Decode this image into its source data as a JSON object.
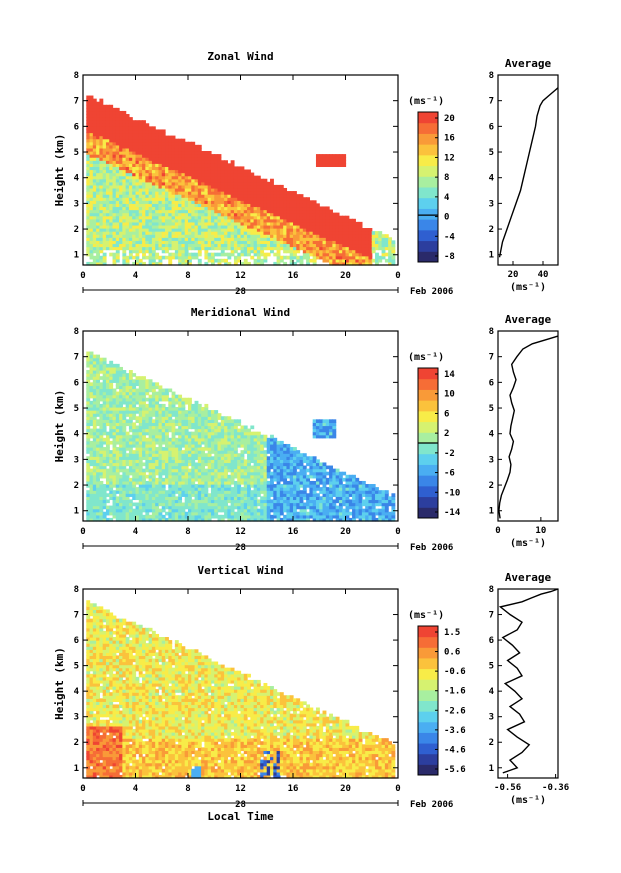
{
  "figure": {
    "x_axis_label": "Local Time",
    "date_day": "28",
    "date_month_year": "Feb 2006",
    "x_ticks": [
      "0",
      "4",
      "8",
      "12",
      "16",
      "20",
      "0"
    ],
    "y_ticks": [
      "1",
      "2",
      "3",
      "4",
      "5",
      "6",
      "7",
      "8"
    ],
    "y_label": "Height (km)",
    "avg_title": "Average",
    "colorbar_unit": "(ms⁻¹)",
    "avg_unit": "(ms⁻¹)",
    "colormap": [
      "#2a2a6a",
      "#2c3e9e",
      "#2f5fd0",
      "#3a86e8",
      "#4aaef2",
      "#5dd0ee",
      "#80e6cc",
      "#a8efa0",
      "#d6f270",
      "#f8ec48",
      "#fbc23c",
      "#f99a38",
      "#f66d36",
      "#ef4433"
    ]
  },
  "chart_data": [
    {
      "type": "heatmap",
      "title": "Zonal Wind",
      "xlabel": "",
      "ylabel": "Height (km)",
      "xlim": [
        0,
        24
      ],
      "ylim": [
        0.6,
        8
      ],
      "colorbar": {
        "unit": "(ms⁻¹)",
        "ticks": [
          "20",
          "16",
          "12",
          "8",
          "4",
          "0",
          "-4",
          "-8"
        ],
        "range": [
          -10,
          22
        ],
        "zero_line": 0
      },
      "profile": {
        "title": "Average",
        "xlim": [
          10,
          50
        ],
        "xticks": [
          "20",
          "40"
        ],
        "xlabel": "(ms⁻¹)",
        "x": [
          11,
          13,
          16,
          19,
          22,
          25,
          27,
          29,
          31,
          33,
          35,
          36,
          38,
          40,
          44,
          48,
          50
        ],
        "y": [
          0.9,
          1.5,
          2.0,
          2.5,
          3.0,
          3.5,
          4.0,
          4.5,
          5.0,
          5.5,
          6.0,
          6.4,
          6.8,
          7.0,
          7.2,
          7.4,
          7.5
        ]
      }
    },
    {
      "type": "heatmap",
      "title": "Meridional Wind",
      "xlabel": "",
      "ylabel": "Height (km)",
      "xlim": [
        0,
        24
      ],
      "ylim": [
        0.6,
        8
      ],
      "colorbar": {
        "unit": "(ms⁻¹)",
        "ticks": [
          "14",
          "10",
          "6",
          "2",
          "-2",
          "-6",
          "-10",
          "-14"
        ],
        "range": [
          -16,
          16
        ],
        "zero_line": 0
      },
      "profile": {
        "title": "Average",
        "xlim": [
          0,
          14
        ],
        "xticks": [
          "0",
          "10"
        ],
        "xlabel": "(ms⁻¹)",
        "x": [
          0.5,
          0.2,
          0.4,
          0.8,
          1.5,
          2.2,
          2.8,
          3.0,
          2.6,
          3.2,
          3.6,
          2.8,
          3.0,
          3.4,
          3.8,
          3.2,
          2.8,
          3.6,
          4.2,
          3.6,
          3.2,
          4.4,
          5.8,
          8.0,
          12.0,
          14.0
        ],
        "y": [
          0.7,
          1.0,
          1.3,
          1.6,
          1.9,
          2.2,
          2.5,
          2.8,
          3.1,
          3.4,
          3.7,
          4.0,
          4.3,
          4.6,
          4.9,
          5.2,
          5.5,
          5.8,
          6.1,
          6.4,
          6.7,
          7.0,
          7.3,
          7.5,
          7.7,
          7.8
        ]
      }
    },
    {
      "type": "heatmap",
      "title": "Vertical Wind",
      "xlabel": "Local Time",
      "ylabel": "Height (km)",
      "xlim": [
        0,
        24
      ],
      "ylim": [
        0.6,
        8
      ],
      "colorbar": {
        "unit": "(ms⁻¹)",
        "ticks": [
          "1.5",
          "0.6",
          "-0.6",
          "-1.6",
          "-2.6",
          "-3.6",
          "-4.6",
          "-5.6"
        ],
        "range": [
          -6.1,
          2.0
        ]
      },
      "profile": {
        "title": "Average",
        "xlim": [
          -0.6,
          -0.35
        ],
        "xticks": [
          "-0.56",
          "-0.36"
        ],
        "xlabel": "(ms⁻¹)",
        "x": [
          -0.58,
          -0.52,
          -0.55,
          -0.5,
          -0.47,
          -0.52,
          -0.56,
          -0.49,
          -0.51,
          -0.55,
          -0.5,
          -0.53,
          -0.57,
          -0.5,
          -0.52,
          -0.56,
          -0.51,
          -0.54,
          -0.58,
          -0.52,
          -0.5,
          -0.55,
          -0.59,
          -0.5,
          -0.46,
          -0.42,
          -0.38,
          -0.35
        ],
        "y": [
          0.8,
          1.0,
          1.3,
          1.6,
          1.9,
          2.2,
          2.5,
          2.8,
          3.1,
          3.4,
          3.7,
          4.0,
          4.3,
          4.6,
          4.9,
          5.2,
          5.5,
          5.8,
          6.1,
          6.4,
          6.7,
          7.0,
          7.3,
          7.5,
          7.65,
          7.8,
          7.9,
          8.0
        ]
      }
    }
  ]
}
